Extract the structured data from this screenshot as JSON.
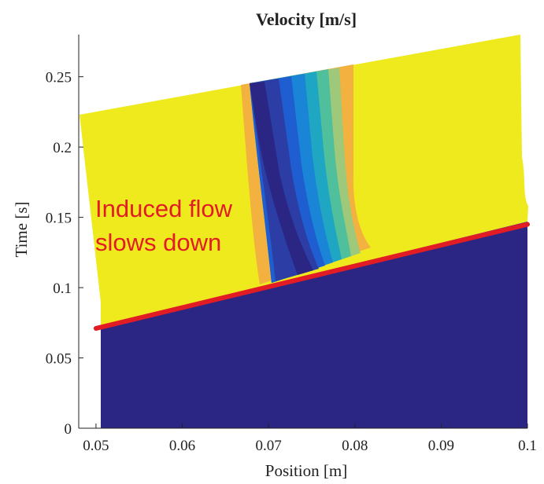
{
  "chart_data": {
    "type": "heatmap",
    "title": "Velocity [m/s]",
    "xlabel": "Position [m]",
    "ylabel": "Time [s]",
    "xlim": [
      0.048,
      0.1
    ],
    "ylim": [
      0,
      0.28
    ],
    "xticks": [
      0.05,
      0.06,
      0.07,
      0.08,
      0.09,
      0.1
    ],
    "xtick_labels": [
      "0.05",
      "0.06",
      "0.07",
      "0.08",
      "0.09",
      "0.1"
    ],
    "yticks": [
      0,
      0.05,
      0.1,
      0.15,
      0.2,
      0.25
    ],
    "ytick_labels": [
      "0",
      "0.05",
      "0.1",
      "0.15",
      "0.2",
      "0.25"
    ],
    "grid": false,
    "colors": {
      "low": "#2b2683",
      "high": "#eeea1d",
      "orange": "#f3b13f",
      "band": [
        "#2b2683",
        "#2c3ea6",
        "#1f5ed1",
        "#1a84d6",
        "#1ea6c2",
        "#4fbf9c",
        "#9ec97b"
      ],
      "front_line": "#e11c24",
      "annotation": "#e11c24"
    },
    "front_line": {
      "x": [
        0.05,
        0.1
      ],
      "y": [
        0.071,
        0.145
      ]
    },
    "annotation": {
      "text": [
        "Induced flow",
        "slows down"
      ]
    }
  }
}
